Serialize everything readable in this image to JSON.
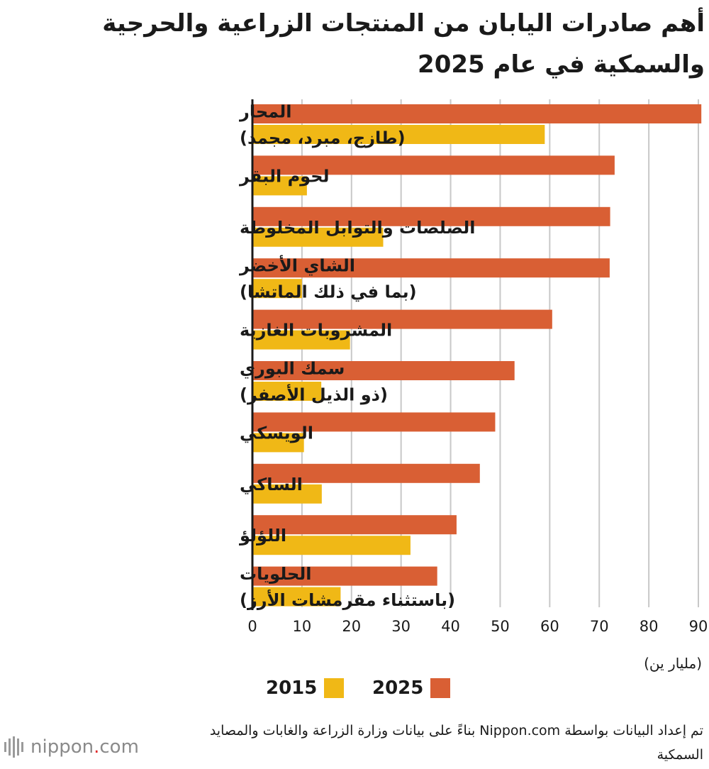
{
  "title": "أهم صادرات اليابان من المنتجات الزراعية والحرجية والسمكية في عام 2025",
  "colors": {
    "series_2025": "#d95f34",
    "series_2015": "#f0b816",
    "grid": "#c8c8c8",
    "axis": "#1a1a1a"
  },
  "chart_data": {
    "type": "bar",
    "orientation": "horizontal",
    "categories": [
      [
        "المحار",
        "(طازج، مبرد، مجمد)"
      ],
      [
        "لحوم البقر"
      ],
      [
        "الصلصات والتوابل المخلوطة"
      ],
      [
        "الشاي الأخضر",
        "(بما في ذلك الماتشا)"
      ],
      [
        "المشروبات الغازية"
      ],
      [
        "سمك البوري",
        "(ذو الذيل الأصفر)"
      ],
      [
        "الويسكي"
      ],
      [
        "الساكي"
      ],
      [
        "اللؤلؤ"
      ],
      [
        "الحلويات",
        "(باستثناء مقرمشات الأرز)"
      ]
    ],
    "series": [
      {
        "name": "2025",
        "color": "#d95f34",
        "values": [
          90.6,
          73.1,
          72.2,
          72.1,
          60.5,
          52.9,
          49.0,
          45.9,
          41.2,
          37.3
        ]
      },
      {
        "name": "2015",
        "color": "#f0b816",
        "values": [
          59.0,
          11.0,
          26.4,
          10.0,
          19.7,
          13.9,
          10.4,
          14.0,
          31.9,
          17.8
        ]
      }
    ],
    "xlim": [
      0,
      90
    ],
    "xticks": [
      "0",
      "10",
      "20",
      "30",
      "40",
      "50",
      "60",
      "70",
      "80",
      "90"
    ],
    "xlabel": "(مليار ين)",
    "grid": true,
    "legend_placement": "bottom"
  },
  "legend": {
    "label_2025": "2025",
    "label_2015": "2015"
  },
  "source": "تم إعداد البيانات بواسطة Nippon.com بناءً على بيانات وزارة الزراعة والغابات والمصايد السمكية",
  "logo": {
    "text_main": "nippon",
    "text_dot": ".",
    "text_tld": "com"
  }
}
